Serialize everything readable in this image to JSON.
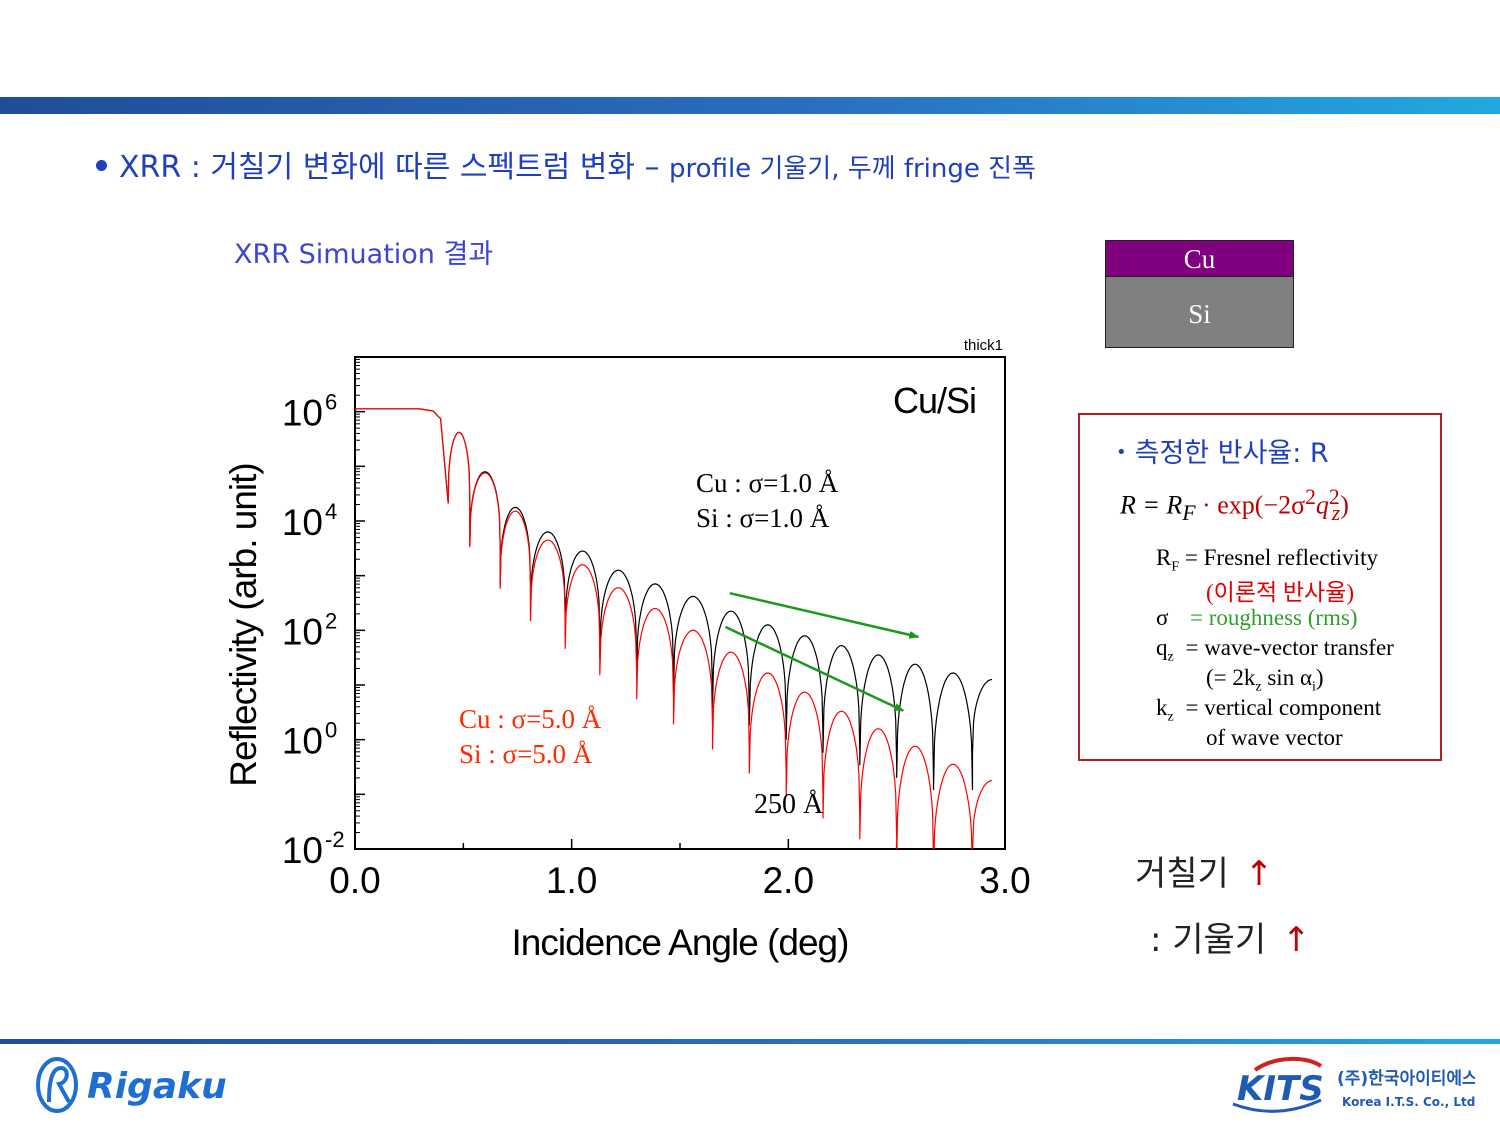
{
  "slide": {
    "headline_main": "XRR : 거칠기 변화에 따른 스펙트럼 변화 – ",
    "headline_tail": "profile 기울기, 두께 fringe 진폭",
    "subtitle": "XRR Simuation 결과",
    "colors": {
      "accent_bar": "#2a6fc0",
      "headline": "#1f3fbf",
      "cu_layer": "#800080",
      "si_layer": "#808080"
    }
  },
  "layers": {
    "top": "Cu",
    "bottom": "Si"
  },
  "formula_box": {
    "title": "측정한 반사율: R",
    "equation_lhs": "R = R",
    "equation_lhs_sub": "F",
    "equation_rhs": " · exp(−2σ",
    "equation_rhs_sup": "2",
    "equation_q": "q",
    "equation_q_sub": "z",
    "equation_q_sup": "2",
    "equation_end": ")",
    "rf_symbol": "R",
    "rf_sub": "F",
    "rf_text": " = Fresnel reflectivity",
    "rf_note": "(이론적 반사율)",
    "sigma_symbol": "σ",
    "sigma_text": "= roughness (rms)",
    "qz_symbol": "q",
    "qz_sub": "z",
    "qz_text": " = wave-vector transfer",
    "qz_note_pre": "(= 2k",
    "qz_note_sub": "z",
    "qz_note_mid": " sin α",
    "qz_note_sub2": "i",
    "qz_note_end": ")",
    "kz_symbol": "k",
    "kz_sub": "z",
    "kz_text": " = vertical component",
    "kz_note": "of wave vector"
  },
  "conclusion": {
    "line1": "거칠기",
    "line2": ":  기울기",
    "arrow": "↑"
  },
  "chart_data": {
    "type": "line",
    "title": "thick1",
    "sample_label": "Cu/Si",
    "xlabel": "Incidence Angle (deg)",
    "ylabel": "Reflectivity (arb. unit)",
    "xlim": [
      0.0,
      3.0
    ],
    "ylim_log10": [
      -2,
      7
    ],
    "y_scale": "log",
    "x_ticks": [
      "0.0",
      "1.0",
      "2.0",
      "3.0"
    ],
    "y_tick_base": "10",
    "y_tick_exponents": [
      "6",
      "4",
      "2",
      "0",
      "-2"
    ],
    "thickness_label": "250 Å",
    "critical_angle": 0.43,
    "fringe_minima_deg": [
      0.43,
      0.53,
      0.67,
      0.81,
      0.97,
      1.13,
      1.3,
      1.47,
      1.65,
      1.82,
      1.99,
      2.16,
      2.33,
      2.5,
      2.67,
      2.85
    ],
    "series": [
      {
        "name": "Cu : σ=1.0 Å / Si : σ=1.0 Å",
        "label_line1": "Cu : σ=1.0 Å",
        "label_line2": "Si : σ=1.0 Å",
        "color": "#000000",
        "fringe_peak_log10": [
          5.62,
          4.9,
          4.25,
          3.8,
          3.45,
          3.1,
          2.85,
          2.62,
          2.35,
          2.1,
          1.9,
          1.72,
          1.55,
          1.38,
          1.22
        ]
      },
      {
        "name": "Cu : σ=5.0 Å / Si : σ=5.0 Å",
        "label_line1": "Cu : σ=5.0 Å",
        "label_line2": "Si : σ=5.0 Å",
        "color": "#ff0000",
        "fringe_peak_log10": [
          5.62,
          4.88,
          4.18,
          3.65,
          3.2,
          2.78,
          2.4,
          2.0,
          1.6,
          1.22,
          0.87,
          0.52,
          0.2,
          -0.12,
          -0.45
        ]
      }
    ],
    "trend_arrows": [
      {
        "from": [
          1.73,
          2.68
        ],
        "to": [
          2.6,
          1.88
        ],
        "color": "#1a9a1a"
      },
      {
        "from": [
          1.71,
          2.06
        ],
        "to": [
          2.53,
          0.53
        ],
        "color": "#1a9a1a"
      }
    ]
  },
  "logos": {
    "left": "Rigaku",
    "right_top": "(주)한국아이티에스",
    "right_bottom": "Korea I.T.S. Co., Ltd.",
    "right_mark": "KITS"
  }
}
